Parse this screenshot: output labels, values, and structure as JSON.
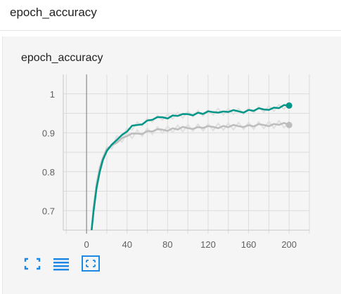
{
  "header": {
    "title": "epoch_accuracy"
  },
  "card": {
    "title": "epoch_accuracy"
  },
  "toolbar": [
    {
      "icon": "fit-domain-icon"
    },
    {
      "icon": "data-table-icon"
    },
    {
      "icon": "expand-icon"
    }
  ],
  "colors": {
    "accent": "#009688",
    "smoothed": "#bdbdbd",
    "raw_light": "#e0e0e0",
    "icon": "#1e88e5"
  },
  "chart_data": {
    "type": "line",
    "title": "epoch_accuracy",
    "xlabel": "",
    "ylabel": "",
    "xlim": [
      -23,
      220
    ],
    "ylim": [
      0.65,
      1.05
    ],
    "x_ticks": [
      0,
      40,
      80,
      120,
      160,
      200
    ],
    "x_tick_labels": [
      "0",
      "40",
      "80",
      "120",
      "160",
      "200"
    ],
    "y_ticks": [
      0.7,
      0.8,
      0.9,
      1.0
    ],
    "y_tick_labels": [
      "0.7",
      "0.8",
      "0.9",
      "1"
    ],
    "grid": true,
    "series": [
      {
        "color": "#009688",
        "x": [
          5,
          7,
          10,
          13,
          16,
          20,
          25,
          30,
          35,
          40,
          45,
          50,
          55,
          60,
          65,
          70,
          75,
          80,
          85,
          90,
          95,
          100,
          105,
          110,
          115,
          120,
          125,
          130,
          135,
          140,
          145,
          150,
          155,
          160,
          165,
          170,
          175,
          180,
          185,
          190,
          195,
          200
        ],
        "values": [
          0.65,
          0.7,
          0.76,
          0.8,
          0.83,
          0.85,
          0.87,
          0.885,
          0.893,
          0.905,
          0.915,
          0.92,
          0.925,
          0.93,
          0.935,
          0.937,
          0.94,
          0.94,
          0.943,
          0.945,
          0.945,
          0.948,
          0.948,
          0.95,
          0.95,
          0.952,
          0.953,
          0.955,
          0.953,
          0.955,
          0.955,
          0.955,
          0.955,
          0.957,
          0.958,
          0.96,
          0.96,
          0.962,
          0.963,
          0.965,
          0.968,
          0.97
        ]
      },
      {
        "color": "#bdbdbd",
        "x": [
          5,
          7,
          10,
          13,
          16,
          20,
          25,
          30,
          35,
          40,
          45,
          50,
          55,
          60,
          65,
          70,
          75,
          80,
          85,
          90,
          95,
          100,
          105,
          110,
          115,
          120,
          125,
          130,
          135,
          140,
          145,
          150,
          155,
          160,
          165,
          170,
          175,
          180,
          185,
          190,
          195,
          200
        ],
        "values": [
          0.65,
          0.71,
          0.77,
          0.81,
          0.835,
          0.855,
          0.868,
          0.878,
          0.885,
          0.893,
          0.895,
          0.898,
          0.9,
          0.903,
          0.905,
          0.906,
          0.908,
          0.908,
          0.91,
          0.91,
          0.912,
          0.912,
          0.913,
          0.913,
          0.914,
          0.914,
          0.915,
          0.915,
          0.916,
          0.916,
          0.917,
          0.917,
          0.918,
          0.918,
          0.918,
          0.919,
          0.92,
          0.92,
          0.921,
          0.922,
          0.922,
          0.92
        ]
      }
    ]
  }
}
